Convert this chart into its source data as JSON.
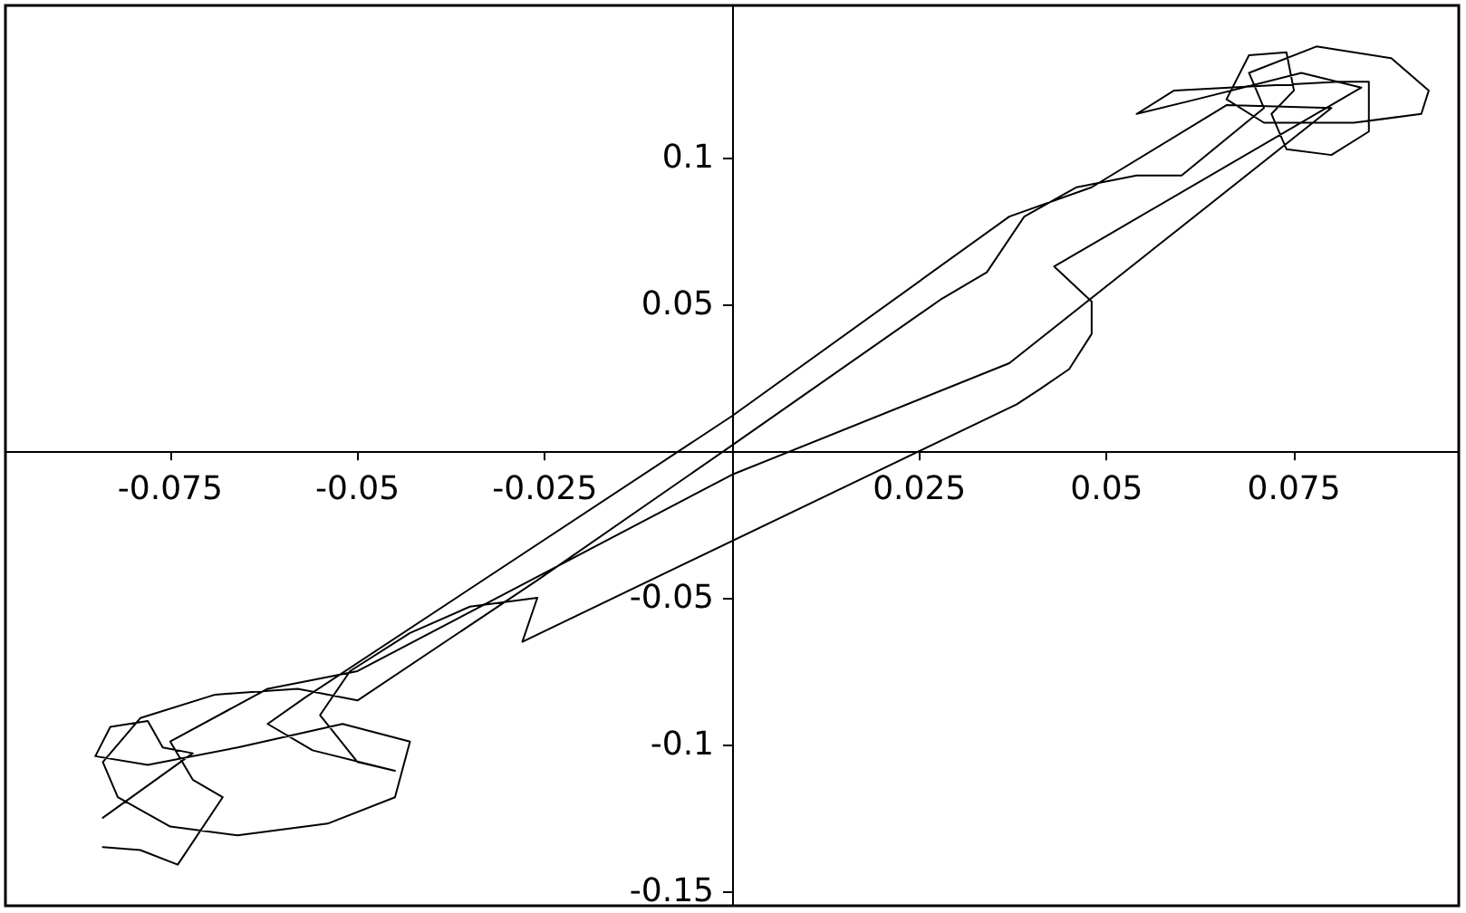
{
  "chart_data": {
    "type": "line",
    "xlim": [
      -0.097,
      0.097
    ],
    "ylim": [
      -0.155,
      0.152
    ],
    "xticks": [
      -0.075,
      -0.05,
      -0.025,
      0.025,
      0.05,
      0.075
    ],
    "yticks": [
      -0.15,
      -0.1,
      -0.05,
      0.05,
      0.1
    ],
    "grid": false,
    "marker": "none",
    "line_style": "solid",
    "series": [
      {
        "color": "#000000",
        "x": [
          -0.084,
          -0.072,
          -0.076,
          -0.078,
          -0.083,
          -0.085,
          -0.078,
          -0.066,
          -0.052,
          -0.043,
          -0.045,
          -0.054,
          -0.066,
          -0.075,
          -0.082,
          -0.084,
          -0.079,
          -0.069,
          -0.058,
          -0.05,
          -0.026,
          0.0,
          0.028,
          0.034,
          0.039,
          0.046,
          0.054,
          0.06,
          0.071,
          0.069,
          0.078,
          0.088,
          0.093,
          0.092,
          0.083,
          0.071,
          0.066,
          0.069,
          0.074,
          0.075,
          0.072,
          0.074,
          0.08,
          0.085,
          0.085,
          0.081,
          0.059,
          0.054,
          0.062,
          0.076,
          0.084,
          0.043,
          0.048,
          0.048,
          0.045,
          0.041,
          0.038,
          -0.028,
          -0.026,
          -0.035,
          -0.043,
          -0.051,
          -0.055,
          -0.05,
          -0.045,
          -0.056,
          -0.062,
          -0.057,
          0.0,
          0.037,
          0.048,
          0.066,
          0.08,
          0.037,
          0.0,
          -0.05,
          -0.062,
          -0.075,
          -0.072,
          -0.068,
          -0.074,
          -0.079,
          -0.084
        ],
        "values": [
          -0.125,
          -0.103,
          -0.101,
          -0.092,
          -0.094,
          -0.104,
          -0.107,
          -0.101,
          -0.093,
          -0.099,
          -0.118,
          -0.127,
          -0.131,
          -0.128,
          -0.118,
          -0.106,
          -0.091,
          -0.083,
          -0.081,
          -0.085,
          -0.044,
          0.002,
          0.052,
          0.061,
          0.08,
          0.09,
          0.094,
          0.094,
          0.117,
          0.129,
          0.138,
          0.134,
          0.123,
          0.115,
          0.112,
          0.112,
          0.12,
          0.135,
          0.136,
          0.123,
          0.115,
          0.103,
          0.101,
          0.109,
          0.126,
          0.126,
          0.123,
          0.115,
          0.12,
          0.129,
          0.124,
          0.063,
          0.051,
          0.04,
          0.028,
          0.021,
          0.016,
          -0.065,
          -0.05,
          -0.053,
          -0.062,
          -0.075,
          -0.09,
          -0.106,
          -0.109,
          -0.102,
          -0.093,
          -0.084,
          0.012,
          0.08,
          0.09,
          0.118,
          0.117,
          0.03,
          -0.008,
          -0.075,
          -0.081,
          -0.099,
          -0.112,
          -0.118,
          -0.141,
          -0.136,
          -0.135
        ]
      }
    ]
  }
}
